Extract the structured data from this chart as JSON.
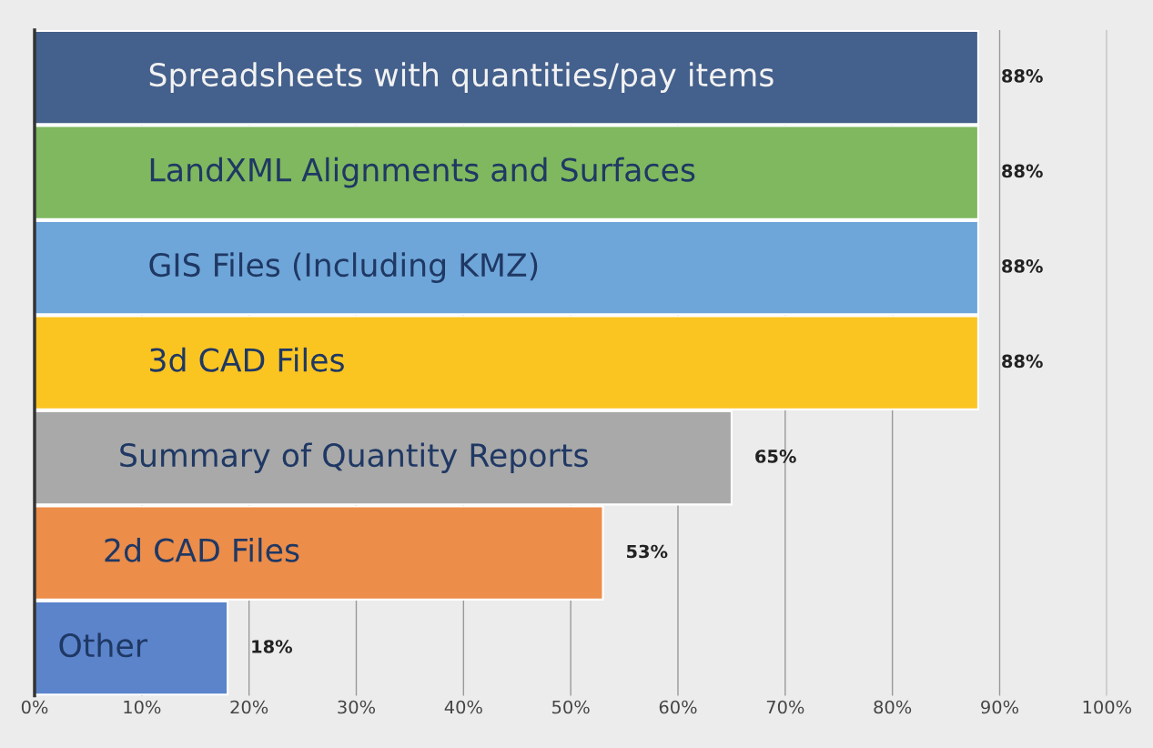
{
  "chart_data": {
    "type": "bar",
    "orientation": "horizontal",
    "categories": [
      "Spreadsheets with quantities/pay items",
      "LandXML Alignments and Surfaces",
      "GIS Files (Including KMZ)",
      "3d CAD Files",
      "Summary of Quantity Reports",
      "2d CAD Files",
      "Other"
    ],
    "values": [
      88,
      88,
      88,
      88,
      65,
      53,
      18
    ],
    "value_labels": [
      "88%",
      "88%",
      "88%",
      "88%",
      "65%",
      "53%",
      "18%"
    ],
    "colors": [
      "#44608c",
      "#7fb85e",
      "#6fa6d9",
      "#fbc521",
      "#a9a9a9",
      "#ec8d4a",
      "#5b84cb"
    ],
    "xlim": [
      0,
      100
    ],
    "xticks": [
      {
        "value": 0,
        "label": "0%"
      },
      {
        "value": 10,
        "label": "10%"
      },
      {
        "value": 20,
        "label": "20%"
      },
      {
        "value": 30,
        "label": "30%"
      },
      {
        "value": 40,
        "label": "40%"
      },
      {
        "value": 50,
        "label": "50%"
      },
      {
        "value": 60,
        "label": "60%"
      },
      {
        "value": 70,
        "label": "70%"
      },
      {
        "value": 80,
        "label": "80%"
      },
      {
        "value": 90,
        "label": "90%"
      },
      {
        "value": 100,
        "label": "100%"
      }
    ],
    "grid": "x",
    "tick_labels": "x",
    "legend": false
  }
}
